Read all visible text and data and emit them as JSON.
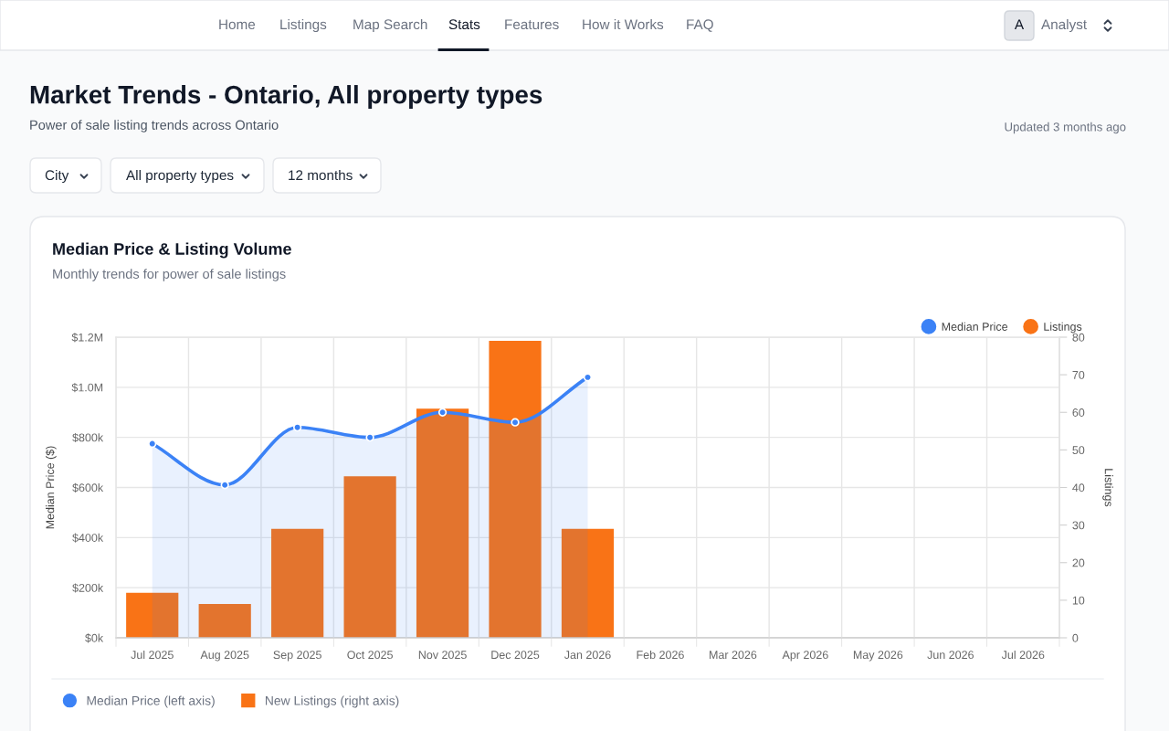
{
  "chart_data": {
    "type": "bar",
    "title": "Median Price & Listing Volume",
    "subtitle": "Monthly trends for power of sale listings",
    "ylabel": "Median Price ($)",
    "y2label": "Listings",
    "categories": [
      "Jul 2025",
      "Aug 2025",
      "Sep 2025",
      "Oct 2025",
      "Nov 2025",
      "Dec 2025",
      "Jan 2026",
      "Feb 2026",
      "Mar 2026",
      "Apr 2026",
      "May 2026",
      "Jun 2026",
      "Jul 2026"
    ],
    "series": [
      {
        "name": "Median Price",
        "type": "area",
        "color": "#3b82f6",
        "values": [
          775000,
          610000,
          840000,
          800000,
          900000,
          860000,
          1040000,
          null,
          null,
          null,
          null,
          null,
          null
        ]
      },
      {
        "name": "Listings",
        "axis": "y2",
        "color": "#f97316",
        "values": [
          12,
          9,
          29,
          43,
          61,
          79,
          29,
          null,
          null,
          null,
          null,
          null,
          null
        ]
      }
    ],
    "ylim": [
      0,
      1200000
    ],
    "yticks": [
      {
        "value": 0,
        "label": "$0k"
      },
      {
        "value": 200000,
        "label": "$200k"
      },
      {
        "value": 400000,
        "label": "$400k"
      },
      {
        "value": 600000,
        "label": "$600k"
      },
      {
        "value": 800000,
        "label": "$800k"
      },
      {
        "value": 1000000,
        "label": "$1.0M"
      },
      {
        "value": 1200000,
        "label": "$1.2M"
      }
    ],
    "y2lim": [
      0,
      80
    ],
    "y2ticks": [
      0,
      10,
      20,
      30,
      40,
      50,
      60,
      70,
      80
    ],
    "grid": true,
    "legend": "top right",
    "marker": "circle",
    "annotations": [
      "Home",
      "Listings",
      "Map Search",
      "Stats",
      "Features",
      "How it Works",
      "FAQ",
      "A",
      "Analyst",
      "Market Trends - Ontario, All property types",
      "Power of sale listing trends across Ontario",
      "Updated 3 months ago",
      "City",
      "All property types",
      "12 months",
      "Median Price (left axis)",
      "New Listings (right axis)"
    ]
  }
}
